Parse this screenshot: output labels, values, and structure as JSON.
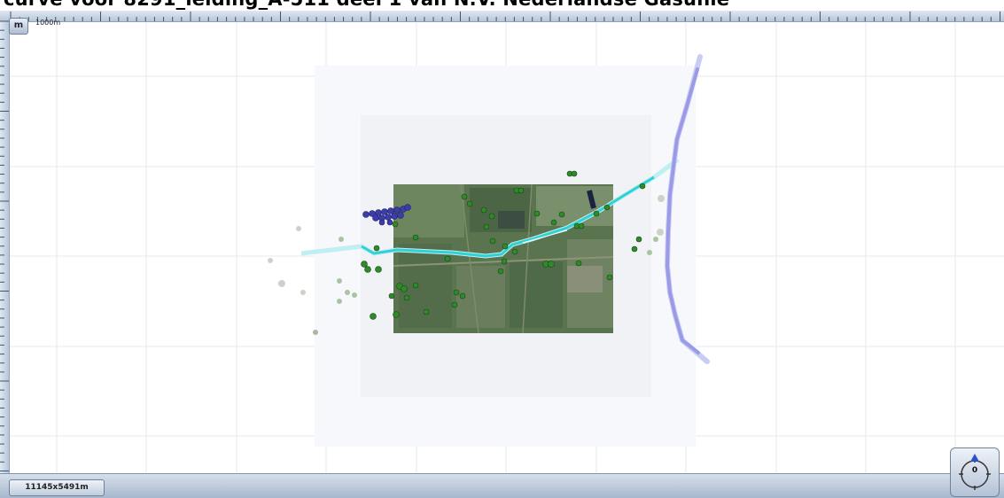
{
  "title": "curve voor 8291_leiding_A-511 deel 1 van N.V. Nederlandse Gasunie",
  "toolbar": {
    "unit_button_label": "m",
    "scale_label": "1000m"
  },
  "status": {
    "extent_label": "11145x5491m"
  },
  "compass": {
    "heading": "0"
  },
  "colors": {
    "pipeline": "#3fd6da",
    "boundary": "#9a9ae8",
    "blue_markers": "#3a3aa0",
    "green_markers": "#2f8a2a",
    "ui_accent": "#b7c6da"
  },
  "layers": [
    {
      "name": "aerial-photo"
    },
    {
      "name": "pipeline-route"
    },
    {
      "name": "boundary-line"
    },
    {
      "name": "sounding-points-green"
    },
    {
      "name": "sounding-points-blue"
    }
  ]
}
